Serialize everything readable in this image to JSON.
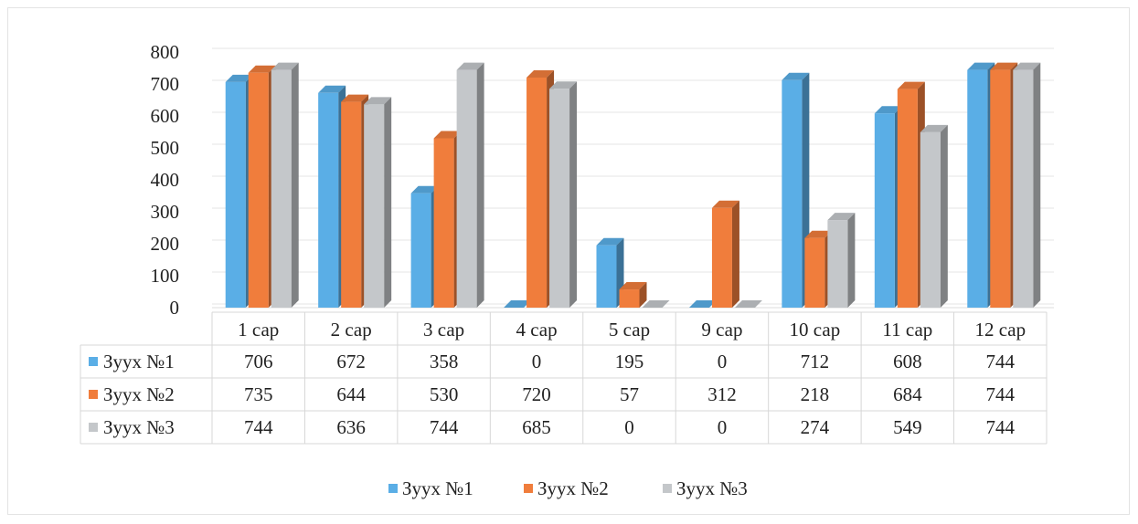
{
  "chart_data": {
    "type": "bar",
    "categories": [
      "1 сар",
      "2 сар",
      "3 сар",
      "4 сар",
      "5 сар",
      "9 сар",
      "10 сар",
      "11 сар",
      "12 сар"
    ],
    "series": [
      {
        "name": "Зуух №1",
        "color": "#5aaee6",
        "values": [
          706,
          672,
          358,
          0,
          195,
          0,
          712,
          608,
          744
        ]
      },
      {
        "name": "Зуух №2",
        "color": "#f07d3c",
        "values": [
          735,
          644,
          530,
          720,
          57,
          312,
          218,
          684,
          744
        ]
      },
      {
        "name": "Зуух №3",
        "color": "#c4c7ca",
        "values": [
          744,
          636,
          744,
          685,
          0,
          0,
          274,
          549,
          744
        ]
      }
    ],
    "y_ticks": [
      "0",
      "100",
      "200",
      "300",
      "400",
      "500",
      "600",
      "700",
      "800"
    ],
    "ylim": [
      0,
      800
    ],
    "grid": true,
    "data_table": true,
    "legend_position": "bottom"
  }
}
